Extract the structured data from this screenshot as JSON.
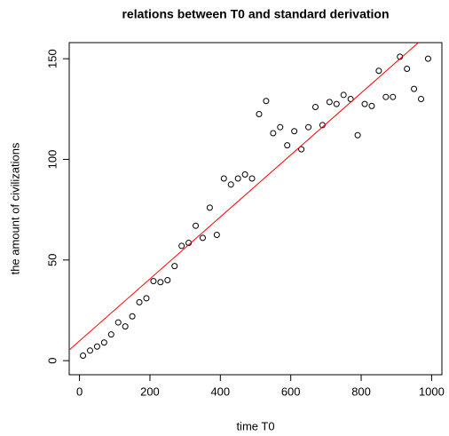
{
  "chart_data": {
    "type": "scatter",
    "title": "relations between T0 and standard derivation",
    "x_label": "time T0",
    "y_label": "the amount of civilizations",
    "x": [
      10,
      30,
      50,
      70,
      90,
      110,
      130,
      150,
      170,
      190,
      210,
      230,
      250,
      270,
      290,
      310,
      330,
      350,
      370,
      390,
      410,
      430,
      450,
      470,
      490,
      510,
      530,
      550,
      570,
      590,
      610,
      630,
      650,
      670,
      690,
      710,
      730,
      750,
      770,
      790,
      810,
      830,
      850,
      870,
      890,
      910,
      930,
      950,
      970,
      990
    ],
    "values": [
      2.5,
      5,
      7,
      9,
      13,
      19,
      17,
      22,
      29,
      31,
      39.5,
      39,
      40,
      47,
      57,
      58.5,
      67,
      61,
      76,
      62.5,
      90.5,
      87.5,
      90.5,
      92.5,
      90.5,
      122.5,
      129,
      113,
      116,
      107,
      114,
      105,
      116,
      126,
      117,
      128.5,
      127.5,
      132,
      130,
      112,
      127.5,
      126.5,
      144,
      131,
      131,
      151,
      145,
      135,
      130,
      150
    ],
    "color": "#000000",
    "fit_line": {
      "intercept": 9.8,
      "slope": 0.154,
      "color": "#ff0000"
    },
    "xlim": [
      -29.2,
      1029.2
    ],
    "ylim": [
      -7,
      158
    ],
    "xticks": [
      0,
      200,
      400,
      600,
      800,
      1000
    ],
    "yticks": [
      0,
      50,
      100,
      150
    ],
    "grid": false
  }
}
